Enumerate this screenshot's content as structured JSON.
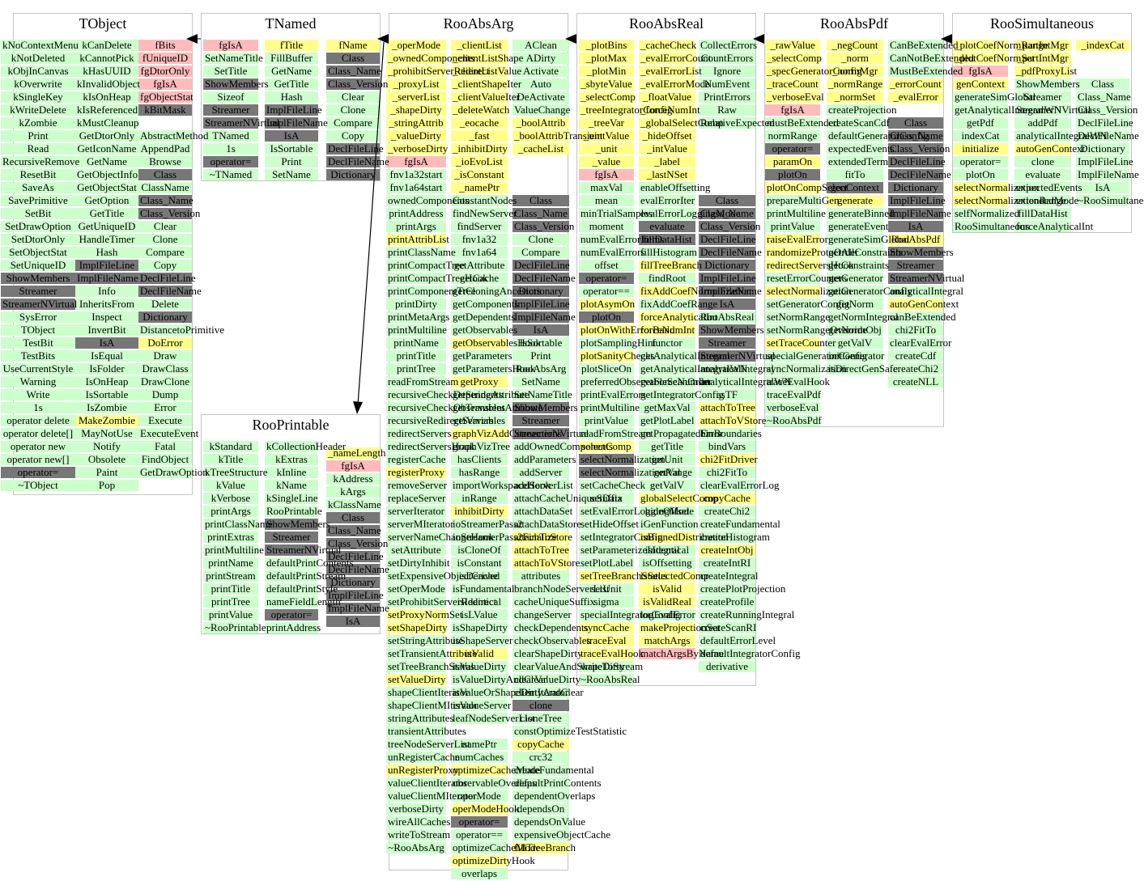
{
  "colors": {
    "green": "#ccffcc",
    "yellow": "#ffff88",
    "pink": "#ffbbbb",
    "gray": "#777777",
    "border": "#c4c4c4",
    "arrow": "#000000"
  },
  "legend": {
    "g": "public member",
    "y": "protected member",
    "p": "private member",
    "d": "base-class / class info member"
  },
  "classes": [
    {
      "name": "TObject",
      "columns": [
        [
          "g:kNoContextMenu",
          "g:kNotDeleted",
          "g:kObjInCanvas",
          "g:kOverwrite",
          "g:kSingleKey",
          "g:kWriteDelete",
          "g:kZombie",
          "g:Print",
          "g:Read",
          "g:RecursiveRemove",
          "g:ResetBit",
          "g:SaveAs",
          "g:SavePrimitive",
          "g:SetBit",
          "g:SetDrawOption",
          "g:SetDtorOnly",
          "g:SetObjectStat",
          "g:SetUniqueID",
          "d:ShowMembers",
          "d:Streamer",
          "d:StreamerNVirtual",
          "g:SysError",
          "g:TObject",
          "g:TestBit",
          "g:TestBits",
          "g:UseCurrentStyle",
          "g:Warning",
          "g:Write",
          "g:1s",
          "g:operator delete",
          "g:operator delete[]",
          "g:operator new",
          "g:operator new[]",
          "d:operator=",
          "g:~TObject"
        ],
        [
          "g:kCanDelete",
          "g:kCannotPick",
          "g:kHasUUID",
          "g:kInvalidObject",
          "g:kIsOnHeap",
          "g:kIsReferenced",
          "g:kMustCleanup",
          "g:GetDtorOnly",
          "g:GetIconName",
          "g:GetName",
          "g:GetObjectInfo",
          "g:GetObjectStat",
          "g:GetOption",
          "g:GetTitle",
          "g:GetUniqueID",
          "g:HandleTimer",
          "g:Hash",
          "d:ImplFileLine",
          "d:ImplFileName",
          "g:Info",
          "g:InheritsFrom",
          "g:Inspect",
          "g:InvertBit",
          "d:IsA",
          "g:IsEqual",
          "g:IsFolder",
          "g:IsOnHeap",
          "g:IsSortable",
          "g:IsZombie",
          "y:MakeZombie",
          "g:MayNotUse",
          "g:Notify",
          "g:Obsolete",
          "g:Paint",
          "g:Pop"
        ],
        [
          "p:fBits",
          "p:fUniqueID",
          "p:fgDtorOnly",
          "p:fgIsA",
          "p:fgObjectStat",
          "d:kBitMask",
          "",
          "g:AbstractMethod",
          "g:AppendPad",
          "g:Browse",
          "d:Class",
          "g:ClassName",
          "d:Class_Name",
          "d:Class_Version",
          "g:Clear",
          "g:Clone",
          "g:Compare",
          "g:Copy",
          "d:DeclFileLine",
          "d:DeclFileName",
          "g:Delete",
          "d:Dictionary",
          "g:DistancetoPrimitive",
          "y:DoError",
          "g:Draw",
          "g:DrawClass",
          "g:DrawClone",
          "g:Dump",
          "g:Error",
          "g:Execute",
          "g:ExecuteEvent",
          "g:Fatal",
          "g:FindObject",
          "g:GetDrawOption"
        ]
      ]
    },
    {
      "name": "TNamed",
      "columns": [
        [
          "p:fgIsA",
          "g:SetNameTitle",
          "g:SetTitle",
          "d:ShowMembers",
          "g:Sizeof",
          "d:Streamer",
          "d:StreamerNVirtual",
          "g:TNamed",
          "g:1s",
          "d:operator=",
          "g:~TNamed"
        ],
        [
          "y:fTitle",
          "g:FillBuffer",
          "g:GetName",
          "g:GetTitle",
          "g:Hash",
          "d:ImplFileLine",
          "d:ImplFileName",
          "d:IsA",
          "g:IsSortable",
          "g:Print",
          "g:SetName"
        ],
        [
          "y:fName",
          "d:Class",
          "d:Class_Name",
          "d:Class_Version",
          "g:Clear",
          "g:Clone",
          "g:Compare",
          "g:Copy",
          "d:DeclFileLine",
          "d:DeclFileName",
          "d:Dictionary"
        ]
      ]
    },
    {
      "name": "RooPrintable",
      "columns": [
        [
          "g:kStandard",
          "g:kTitle",
          "g:kTreeStructure",
          "g:kValue",
          "g:kVerbose",
          "g:printArgs",
          "g:printClassName",
          "g:printExtras",
          "g:printMultiline",
          "g:printName",
          "g:printStream",
          "g:printTitle",
          "g:printTree",
          "g:printValue",
          "g:~RooPrintable"
        ],
        [
          "g:kCollectionHeader",
          "g:kExtras",
          "g:kInline",
          "g:kName",
          "g:kSingleLine",
          "g:RooPrintable",
          "d:ShowMembers",
          "d:Streamer",
          "d:StreamerNVirtual",
          "g:defaultPrintContents",
          "g:defaultPrintStream",
          "g:defaultPrintStyle",
          "g:nameFieldLength",
          "d:operator=",
          "g:printAddress"
        ],
        [
          "y:_nameLength",
          "p:fgIsA",
          "g:kAddress",
          "g:kArgs",
          "g:kClassName",
          "d:Class",
          "d:Class_Name",
          "d:Class_Version",
          "d:DeclFileLine",
          "d:DeclFileName",
          "d:Dictionary",
          "d:ImplFileLine",
          "d:ImplFileName",
          "d:IsA"
        ]
      ]
    },
    {
      "name": "RooAbsArg",
      "columns": [
        [
          "y:_operMode",
          "y:_ownedComponents",
          "y:_prohibitServerRedirect",
          "y:_proxyList",
          "y:_serverList",
          "y:_shapeDirty",
          "y:_stringAttrib",
          "y:_valueDirty",
          "y:_verboseDirty",
          "p:fgIsA",
          "g:fnv1a32start",
          "g:fnv1a64start",
          "g:ownedComponents",
          "g:printAddress",
          "g:printArgs",
          "y:printAttribList",
          "g:printClassName",
          "g:printCompactTree",
          "g:printCompactTreeHook",
          "g:printComponentTree",
          "g:printDirty",
          "g:printMetaArgs",
          "g:printMultiline",
          "g:printName",
          "g:printTitle",
          "g:printTree",
          "g:readFromStream",
          "g:recursiveCheckDependents",
          "g:recursiveCheckObservables",
          "g:recursiveRedirectServers",
          "g:redirectServers",
          "g:redirectServersHook",
          "g:registerCache",
          "y:registerProxy",
          "g:removeServer",
          "g:replaceServer",
          "g:serverIterator",
          "g:serverMIterator",
          "g:serverNameChangeHook",
          "g:setAttribute",
          "g:setDirtyInhibit",
          "g:setExpensiveObjectCache",
          "g:setOperMode",
          "g:setProhibitServerRedirect",
          "y:setProxyNormSet",
          "y:setShapeDirty",
          "g:setStringAttribute",
          "g:setTransientAttribute",
          "g:setTreeBranchStatus",
          "y:setValueDirty",
          "g:shapeClientIterator",
          "g:shapeClientMIterator",
          "g:stringAttributes",
          "g:transientAttributes",
          "g:treeNodeServerList",
          "g:unRegisterCache",
          "y:unRegisterProxy",
          "g:valueClientIterator",
          "g:valueClientMIterator",
          "g:verboseDirty",
          "g:wireAllCaches",
          "g:writeToStream",
          "g:~RooAbsArg"
        ],
        [
          "y:_clientList",
          "y:_clientListShape",
          "y:_clientListValue",
          "y:_clientShapeIter",
          "y:_clientValueIter",
          "y:_deleteWatch",
          "y:_eocache",
          "y:_fast",
          "y:_inhibitDirty",
          "y:_ioEvoList",
          "y:_isConstant",
          "y:_namePtr",
          "g:ConstantNodes",
          "g:findNewServer",
          "g:findServer",
          "g:fnv1a32",
          "g:fnv1a64",
          "g:getAttribute",
          "g:getCache",
          "g:getCloningAncestors",
          "g:getComponents",
          "g:getDependents",
          "g:getObservables",
          "y:getObservablesHook",
          "g:getParameters",
          "g:getParametersHook",
          "y:getProxy",
          "g:getStringAttribute",
          "g:getTransientAttribute",
          "g:getVariables",
          "y:graphVizAddConnections",
          "g:graphVizTree",
          "g:hasClients",
          "g:hasRange",
          "g:importWorkspaceHook",
          "g:inRange",
          "y:inhibitDirty",
          "g:ioStreamerPass2",
          "g:ioStreamerPass2Finalize",
          "g:isCloneOf",
          "g:isConstant",
          "g:isDerived",
          "g:isFundamental",
          "g:isIdentical",
          "g:isLValue",
          "g:isShapeDirty",
          "g:isShapeServer",
          "y:isValid",
          "g:isValueDirty",
          "g:isValueDirtyAndClear",
          "g:isValueOrShapeDirtyAndClear",
          "g:isValueServer",
          "g:leafNodeServerList",
          "",
          "g:namePtr",
          "g:numCaches",
          "y:optimizeCacheMode",
          "g:observableOverlaps",
          "g:operMode",
          "y:operModeHook",
          "d:operator=",
          "g:operator==",
          "g:optimizeCacheMode",
          "y:optimizeDirtyHook",
          "g:overlaps"
        ],
        [
          "g:AClean",
          "g:ADirty",
          "g:Activate",
          "g:Auto",
          "g:DeActivate",
          "g:ValueChange",
          "y:_boolAttrib",
          "y:_boolAttribTransient",
          "y:_cacheList",
          "",
          "",
          "",
          "d:Class",
          "d:Class_Name",
          "d:Class_Version",
          "g:Clone",
          "g:Compare",
          "d:DeclFileLine",
          "d:DeclFileName",
          "d:Dictionary",
          "d:ImplFileLine",
          "d:ImplFileName",
          "d:IsA",
          "g:IsSortable",
          "g:Print",
          "g:RooAbsArg",
          "g:SetName",
          "g:SetNameTitle",
          "d:ShowMembers",
          "d:Streamer",
          "d:StreamerNVirtual",
          "g:addOwnedComponents",
          "g:addParameters",
          "g:addServer",
          "g:addServerList",
          "g:attachCacheUniqueSuffix",
          "g:attachDataSet",
          "g:attachDataStore",
          "y:attachToStore",
          "y:attachToTree",
          "y:attachToVStore",
          "g:attributes",
          "g:branchNodeServerList",
          "g:cacheUniqueSuffix",
          "g:changeServer",
          "g:checkDependents",
          "g:checkObservables",
          "g:clearShapeDirty",
          "g:clearValueAndShapeDirty",
          "g:clearValueDirty",
          "g:clientIterator",
          "d:clone",
          "g:cloneTree",
          "g:constOptimizeTestStatistic",
          "y:copyCache",
          "g:crc32",
          "g:createFundamental",
          "g:defaultPrintContents",
          "g:dependentOverlaps",
          "g:dependsOn",
          "g:dependsOnValue",
          "g:expensiveObjectCache",
          "y:fillTreeBranch"
        ]
      ]
    },
    {
      "name": "RooAbsReal",
      "columns": [
        [
          "y:_plotBins",
          "y:_plotMax",
          "y:_plotMin",
          "y:_sbyteValue",
          "y:_selectComp",
          "y:_treeIntegratorConfig",
          "y:_treeVar",
          "y:_uintValue",
          "y:_unit",
          "y:_value",
          "p:fgIsA",
          "g:maxVal",
          "g:mean",
          "g:minTrialSamples",
          "g:moment",
          "g:numEvalErrorItems",
          "g:numEvalErrors",
          "g:offset",
          "d:operator=",
          "g:operator==",
          "y:plotAsymOn",
          "d:plotOn",
          "y:plotOnWithErrorBand",
          "g:plotSamplingHint",
          "y:plotSanityChecks",
          "g:plotSliceOn",
          "g:preferredObservableScanOrder",
          "g:printEvalErrors",
          "g:printMultiline",
          "g:printValue",
          "g:readFromStream",
          "y:selectComp",
          "d:selectNormalization",
          "d:selectNormalizationRange",
          "g:setCacheCheck",
          "g:setData",
          "g:setEvalErrorLoggingMode",
          "g:setHideOffset",
          "g:setIntegratorConfig",
          "g:setParameterizeIntegral",
          "g:setPlotLabel",
          "y:setTreeBranchStatus",
          "g:setUnit",
          "g:sigma",
          "g:specialIntegratorConfig",
          "y:syncCache",
          "y:traceEval",
          "y:traceEvalHook",
          "g:writeToStream",
          "g:~RooAbsReal"
        ],
        [
          "y:_cacheCheck",
          "y:_evalErrorCount",
          "y:_evalErrorList",
          "y:_evalErrorMode",
          "y:_floatValue",
          "y:_forceNumInt",
          "y:_globalSelectComp",
          "y:_hideOffset",
          "y:_intValue",
          "y:_label",
          "y:_lastNSet",
          "g:enableOffsetting",
          "g:evalErrorIter",
          "g:evalErrorLoggingMode",
          "d:evaluate",
          "d:fillDataHist",
          "g:fillHistogram",
          "y:fillTreeBranch",
          "g:findRoot",
          "y:fixAddCoefNormalization",
          "g:fixAddCoefRange",
          "y:forceAnalyticalInt",
          "y:forceNumInt",
          "g:functor",
          "g:getAnalyticalIntegral",
          "g:getAnalyticalIntegralWN",
          "g:getForceNumInt",
          "g:getIntegratorConfig",
          "g:getMaxVal",
          "g:getPlotLabel",
          "g:getPropagatedError",
          "g:getTitle",
          "g:getUnit",
          "g:getVal",
          "g:getValV",
          "y:globalSelectComp",
          "g:hideOffset",
          "g:iGenFunction",
          "y:isBinnedDistribution",
          "g:isIdentical",
          "g:isOffsetting",
          "y:isSelectedComp",
          "y:isValid",
          "y:isValidReal",
          "g:logEvalError",
          "y:makeProjectionSet",
          "y:matchArgs",
          "p:matchArgsByName"
        ],
        [
          "g:CollectErrors",
          "g:CountErrors",
          "g:Ignore",
          "g:NumEvent",
          "g:PrintErrors",
          "g:Raw",
          "g:RelativeExpected",
          "",
          "",
          "",
          "",
          "",
          "d:Class",
          "d:Class_Name",
          "d:Class_Version",
          "d:DeclFileLine",
          "d:DeclFileName",
          "d:Dictionary",
          "d:ImplFileLine",
          "d:ImplFileName",
          "d:IsA",
          "g:RooAbsReal",
          "d:ShowMembers",
          "d:Streamer",
          "d:StreamerNVirtual",
          "g:analyticalIntegral",
          "g:analyticalIntegralWN",
          "g:asTF",
          "y:attachToTree",
          "y:attachToVStore",
          "g:binBoundaries",
          "g:bindVars",
          "y:chi2FitDriver",
          "g:chi2FitTo",
          "g:clearEvalErrorLog",
          "y:copyCache",
          "g:createChi2",
          "g:createFundamental",
          "g:createHistogram",
          "y:createIntObj",
          "g:createIntRI",
          "g:createIntegral",
          "g:createPlotProjection",
          "g:createProfile",
          "g:createRunningIntegral",
          "g:createScanRI",
          "g:defaultErrorLevel",
          "g:defaultIntegratorConfig",
          "g:derivative"
        ]
      ]
    },
    {
      "name": "RooAbsPdf",
      "columns": [
        [
          "y:_rawValue",
          "y:_selectComp",
          "y:_specGeneratorConfig",
          "y:_traceCount",
          "y:_verboseEval",
          "p:fgIsA",
          "g:mustBeExtended",
          "g:normRange",
          "d:operator=",
          "y:paramOn",
          "d:plotOn",
          "y:plotOnCompSelect",
          "g:prepareMultiGen",
          "g:printMultiline",
          "g:printValue",
          "y:raiseEvalError",
          "y:randomizeProtoOrder",
          "y:redirectServersHook",
          "g:resetErrorCounters",
          "y:selectNormalization",
          "g:setGeneratorConfig",
          "g:setNormRange",
          "g:setNormRangeOverride",
          "y:setTraceCounter",
          "g:specialGeneratorConfig",
          "g:syncNormalization",
          "g:traceEvalHook",
          "g:traceEvalPdf",
          "g:verboseEval",
          "g:~RooAbsPdf"
        ],
        [
          "y:_negCount",
          "y:_norm",
          "y:_normMgr",
          "y:_normRange",
          "y:_normSet",
          "g:createProjection",
          "g:createScanCdf",
          "g:defaultGeneratorConfig",
          "g:expectedEvents",
          "g:extendedTerm",
          "g:fitTo",
          "d:genContext",
          "y:generate",
          "g:generateBinned",
          "g:generateEvent",
          "g:generateSimGlobal",
          "g:getAllConstraints",
          "g:getConstraints",
          "g:getGenerator",
          "g:getGeneratorConfig",
          "g:getNorm",
          "g:getNormIntegral",
          "g:getNormObj",
          "g:getValV",
          "g:initGenerator",
          "g:isDirectGenSafe"
        ],
        [
          "g:CanBeExtended",
          "g:CanNotBeExtended",
          "g:MustBeExtended",
          "y:_errorCount",
          "y:_evalError",
          "",
          "d:Class",
          "d:Class_Name",
          "d:Class_Version",
          "d:DeclFileLine",
          "d:DeclFileName",
          "d:Dictionary",
          "d:ImplFileLine",
          "d:ImplFileName",
          "d:IsA",
          "y:RooAbsPdf",
          "d:ShowMembers",
          "d:Streamer",
          "d:StreamerNVirtual",
          "g:analyticalIntegral",
          "y:autoGenContext",
          "g:canBeExtended",
          "g:chi2FitTo",
          "g:clearEvalError",
          "g:createCdf",
          "g:createChi2",
          "g:createNLL"
        ]
      ]
    },
    {
      "name": "RooSimultaneous",
      "columns": [
        [
          "y:_plotCoefNormRange",
          "y:_plotCoefNormSet",
          "p:fgIsA",
          "y:genContext",
          "g:generateSimGlobal",
          "g:getAnalyticalIntegralWN",
          "g:getPdf",
          "g:indexCat",
          "y:initialize",
          "g:operator=",
          "g:plotOn",
          "y:selectNormalization",
          "y:selectNormalizationRange",
          "g:selfNormalized",
          "g:RooSimultaneous"
        ],
        [
          "y:_partIntMgr",
          "y:_partIntMgr",
          "y:_pdfProxyList",
          "g:ShowMembers",
          "g:Streamer",
          "g:StreamerNVirtual",
          "g:addPdf",
          "g:analyticalIntegralWN",
          "y:autoGenContext",
          "g:clone",
          "g:evaluate",
          "g:expectedEvents",
          "g:extendedMode",
          "g:fillDataHist",
          "g:forceAnalyticalInt"
        ],
        [
          "y:_indexCat",
          "",
          "",
          "g:Class",
          "g:Class_Name",
          "g:Class_Version",
          "g:DeclFileLine",
          "g:DeclFileName",
          "g:Dictionary",
          "g:ImplFileLine",
          "g:ImplFileName",
          "g:IsA",
          "g:~RooSimultaneous"
        ]
      ]
    }
  ]
}
